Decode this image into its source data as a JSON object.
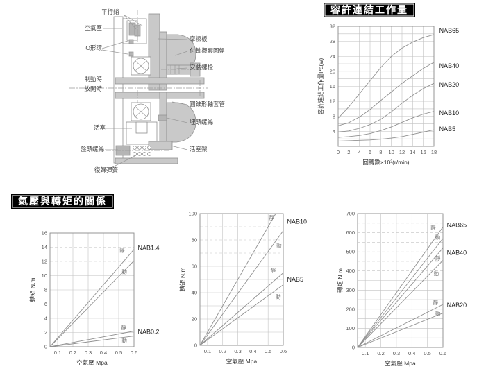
{
  "sections": {
    "allowable_work_title": "容許連結工作量",
    "pressure_torque_title": "氣壓與轉矩的關係"
  },
  "diagram": {
    "labels": {
      "parallel_pin": "平行銷",
      "air_chamber": "空氣室",
      "o_ring": "O形環",
      "when_braking": "制動時",
      "when_released": "放開時",
      "piston": "活塞",
      "pan_head_screw": "盤頭螺絲",
      "return_spring": "復歸彈簧",
      "friction_plate": "摩擦板",
      "bushing_disc": "付軸襯套圓盤",
      "mounting_bolt": "安裝螺栓",
      "conical_sleeve": "圓錐形軸套管",
      "countersunk_screw": "埋頭螺絲",
      "piston_frame": "活塞架"
    }
  },
  "colors": {
    "accent": "#000000",
    "grid": "#c2c2c2",
    "series_line": "#909090"
  },
  "chart_data": [
    {
      "type": "line",
      "title": "容許連結工作量",
      "xlabel": "回轉數×10²(r/min)",
      "ylabel": "容許連結工作量Pa(w)",
      "xlim": [
        0,
        18
      ],
      "ylim": [
        0,
        32
      ],
      "xticks": [
        "0",
        "2",
        "4",
        "6",
        "8",
        "10",
        "12",
        "14",
        "16",
        "18"
      ],
      "yticks": [
        "4",
        "8",
        "12",
        "16",
        "20",
        "24",
        "28",
        "32"
      ],
      "ygrid_step": 2,
      "dashed_ygrid": [],
      "series": [
        {
          "name": "NAB65",
          "points": [
            [
              0,
              7.5
            ],
            [
              2,
              10.5
            ],
            [
              4,
              14
            ],
            [
              6,
              17.5
            ],
            [
              8,
              21
            ],
            [
              10,
              24
            ],
            [
              12,
              26.2
            ],
            [
              14,
              27.8
            ],
            [
              16,
              29
            ],
            [
              18,
              29.8
            ]
          ]
        },
        {
          "name": "NAB40",
          "points": [
            [
              0,
              5.5
            ],
            [
              2,
              6.3
            ],
            [
              4,
              7.8
            ],
            [
              6,
              9.8
            ],
            [
              8,
              12.2
            ],
            [
              10,
              14.5
            ],
            [
              12,
              16.8
            ],
            [
              14,
              18.8
            ],
            [
              16,
              20.8
            ],
            [
              18,
              22.4
            ]
          ]
        },
        {
          "name": "NAB20",
          "points": [
            [
              0,
              3.8
            ],
            [
              2,
              4.1
            ],
            [
              4,
              4.8
            ],
            [
              6,
              5.8
            ],
            [
              8,
              7.2
            ],
            [
              10,
              9.2
            ],
            [
              12,
              11.5
            ],
            [
              14,
              13.6
            ],
            [
              16,
              15.4
            ],
            [
              18,
              16.8
            ]
          ]
        },
        {
          "name": "NAB10",
          "points": [
            [
              0,
              2.4
            ],
            [
              2,
              2.6
            ],
            [
              4,
              2.9
            ],
            [
              6,
              3.4
            ],
            [
              8,
              4.2
            ],
            [
              10,
              5.2
            ],
            [
              12,
              6.4
            ],
            [
              14,
              7.6
            ],
            [
              16,
              8.6
            ],
            [
              18,
              9.3
            ]
          ]
        },
        {
          "name": "NAB5",
          "points": [
            [
              0,
              1.4
            ],
            [
              2,
              1.5
            ],
            [
              4,
              1.6
            ],
            [
              6,
              1.7
            ],
            [
              8,
              1.9
            ],
            [
              10,
              2.2
            ],
            [
              12,
              2.6
            ],
            [
              14,
              3.2
            ],
            [
              16,
              3.8
            ],
            [
              18,
              4.4
            ]
          ]
        }
      ],
      "annotations": [
        {
          "text": "NAB65",
          "x": 19,
          "y": 30.9
        },
        {
          "text": "NAB40",
          "x": 19,
          "y": 21.5
        },
        {
          "text": "NAB20",
          "x": 19,
          "y": 16.5
        },
        {
          "text": "NAB10",
          "x": 19,
          "y": 8.9
        },
        {
          "text": "NAB5",
          "x": 19,
          "y": 4.6
        }
      ]
    },
    {
      "type": "line",
      "title": "氣壓與轉矩的關係 NAB1.4/NAB0.2",
      "xlabel": "空氣壓 Mpa",
      "ylabel": "轉矩 N.m",
      "xlim": [
        0.05,
        0.6
      ],
      "ylim": [
        0,
        16
      ],
      "xticks": [
        "0.1",
        "0.2",
        "0.3",
        "0.4",
        "0.5",
        "0.6"
      ],
      "yticks": [
        "0",
        "2",
        "4",
        "6",
        "8",
        "10",
        "12",
        "14",
        "16"
      ],
      "ygrid_step": 2,
      "dashed_ygrid": [
        12,
        14
      ],
      "series": [
        {
          "name": "NAB1.4 靜",
          "points": [
            [
              0.05,
              0
            ],
            [
              0.6,
              13.7
            ]
          ]
        },
        {
          "name": "NAB1.4 動",
          "points": [
            [
              0.05,
              0
            ],
            [
              0.6,
              12.1
            ]
          ]
        },
        {
          "name": "NAB0.2 靜",
          "points": [
            [
              0.05,
              0
            ],
            [
              0.6,
              2.2
            ]
          ]
        },
        {
          "name": "NAB0.2 動",
          "points": [
            [
              0.05,
              0
            ],
            [
              0.6,
              1.5
            ]
          ]
        }
      ],
      "annotations": [
        {
          "text": "靜",
          "x": 0.505,
          "y": 13.6,
          "small": true
        },
        {
          "text": "動",
          "x": 0.52,
          "y": 10.6,
          "small": true
        },
        {
          "text": "NAB1.4",
          "x": 0.625,
          "y": 13.9
        },
        {
          "text": "靜",
          "x": 0.515,
          "y": 2.75,
          "small": true
        },
        {
          "text": "動",
          "x": 0.52,
          "y": 0.95,
          "small": true
        },
        {
          "text": "NAB0.2",
          "x": 0.625,
          "y": 2.1
        }
      ]
    },
    {
      "type": "line",
      "title": "氣壓與轉矩的關係 NAB10/NAB5",
      "xlabel": "空氣壓 Mpa",
      "ylabel": "轉矩 N.m",
      "xlim": [
        0.05,
        0.6
      ],
      "ylim": [
        0,
        100
      ],
      "xticks": [
        "0.1",
        "0.2",
        "0.3",
        "0.4",
        "0.5",
        "0.6"
      ],
      "yticks": [
        "0",
        "20",
        "40",
        "60",
        "80",
        "100"
      ],
      "ygrid_step": 10,
      "dashed_ygrid": [
        70,
        80,
        90
      ],
      "series": [
        {
          "name": "NAB10 靜",
          "points": [
            [
              0.05,
              0
            ],
            [
              0.55,
              100
            ]
          ]
        },
        {
          "name": "NAB10 動",
          "points": [
            [
              0.05,
              0
            ],
            [
              0.6,
              87
            ]
          ]
        },
        {
          "name": "NAB5 靜",
          "points": [
            [
              0.05,
              0
            ],
            [
              0.6,
              55
            ]
          ]
        },
        {
          "name": "NAB5 動",
          "points": [
            [
              0.05,
              0
            ],
            [
              0.6,
              46
            ]
          ]
        }
      ],
      "annotations": [
        {
          "text": "靜",
          "x": 0.505,
          "y": 97,
          "small": true
        },
        {
          "text": "NAB10",
          "x": 0.625,
          "y": 94
        },
        {
          "text": "動",
          "x": 0.555,
          "y": 76,
          "small": true
        },
        {
          "text": "靜",
          "x": 0.515,
          "y": 57,
          "small": true
        },
        {
          "text": "NAB5",
          "x": 0.625,
          "y": 50
        },
        {
          "text": "動",
          "x": 0.55,
          "y": 37,
          "small": true
        }
      ]
    },
    {
      "type": "line",
      "title": "氣壓與轉矩的關係 NAB65/NAB40/NAB20",
      "xlabel": "空氣壓 Mpa",
      "ylabel": "轉矩 N.m",
      "xlim": [
        0.05,
        0.6
      ],
      "ylim": [
        0,
        700
      ],
      "xticks": [
        "0.1",
        "0.2",
        "0.3",
        "0.4",
        "0.5",
        "0.6"
      ],
      "yticks": [
        "0",
        "100",
        "200",
        "300",
        "400",
        "500",
        "600",
        "700"
      ],
      "ygrid_step": 50,
      "dashed_ygrid": [
        400,
        450,
        500,
        550,
        600,
        650
      ],
      "series": [
        {
          "name": "NAB65 靜",
          "points": [
            [
              0.05,
              0
            ],
            [
              0.6,
              630
            ]
          ]
        },
        {
          "name": "NAB65 動",
          "points": [
            [
              0.05,
              0
            ],
            [
              0.6,
              570
            ]
          ]
        },
        {
          "name": "NAB40 靜",
          "points": [
            [
              0.05,
              0
            ],
            [
              0.6,
              520
            ]
          ]
        },
        {
          "name": "NAB40 動",
          "points": [
            [
              0.05,
              0
            ],
            [
              0.6,
              455
            ]
          ]
        },
        {
          "name": "NAB20 靜",
          "points": [
            [
              0.05,
              0
            ],
            [
              0.6,
              225
            ]
          ]
        },
        {
          "name": "NAB20 動",
          "points": [
            [
              0.05,
              0
            ],
            [
              0.6,
              180
            ]
          ]
        }
      ],
      "annotations": [
        {
          "text": "靜",
          "x": 0.52,
          "y": 628,
          "small": true
        },
        {
          "text": "NAB65",
          "x": 0.625,
          "y": 640
        },
        {
          "text": "動",
          "x": 0.55,
          "y": 578,
          "small": true
        },
        {
          "text": "NAB40",
          "x": 0.625,
          "y": 495
        },
        {
          "text": "靜",
          "x": 0.55,
          "y": 468,
          "small": true
        },
        {
          "text": "動",
          "x": 0.54,
          "y": 388,
          "small": true
        },
        {
          "text": "靜",
          "x": 0.535,
          "y": 235,
          "small": true
        },
        {
          "text": "NAB20",
          "x": 0.625,
          "y": 222
        },
        {
          "text": "動",
          "x": 0.55,
          "y": 180,
          "small": true
        }
      ]
    }
  ]
}
